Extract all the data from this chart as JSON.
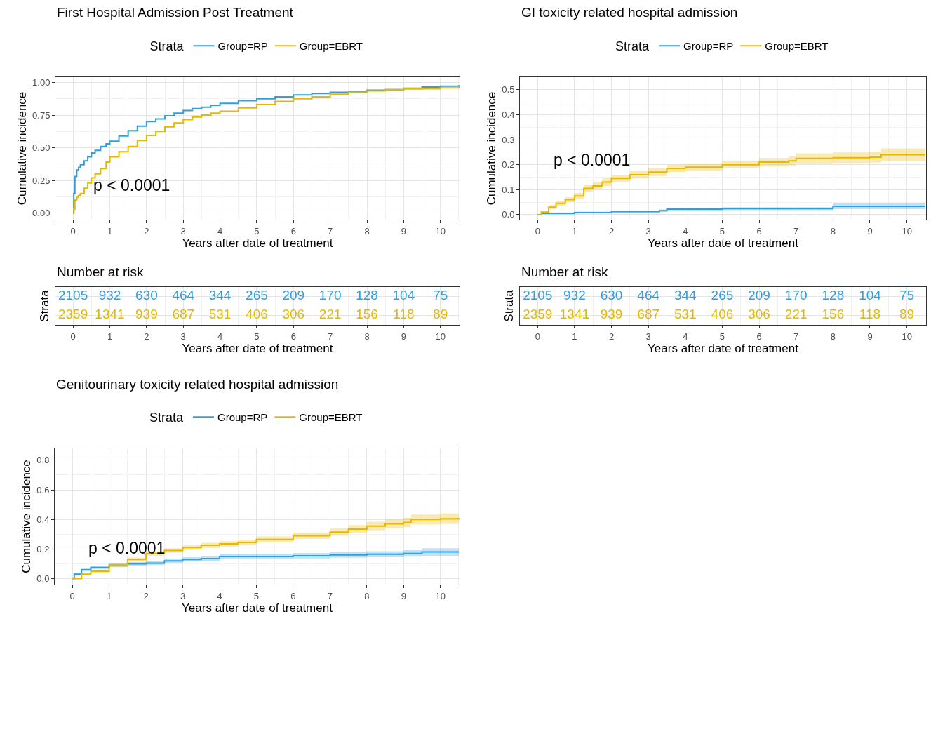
{
  "chart_data": [
    {
      "type": "step",
      "title": "First Hospital Admission Post Treatment",
      "xlabel": "Years after date of treatment",
      "ylabel": "Cumulative incidence",
      "legend_title": "Strata",
      "legend": "top",
      "grid": true,
      "annotations": [
        "p < 0.0001"
      ],
      "xlim": [
        -0.48,
        10.52
      ],
      "xticks": [
        0,
        1,
        2,
        3,
        4,
        5,
        6,
        7,
        8,
        9,
        10
      ],
      "ylim": [
        -0.05,
        1.04
      ],
      "yticks": [
        {
          "value": 0,
          "label": "0.00"
        },
        {
          "value": 0.25,
          "label": "0.25"
        },
        {
          "value": 0.5,
          "label": "0.50"
        },
        {
          "value": 0.75,
          "label": "0.75"
        },
        {
          "value": 1,
          "label": "1.00"
        }
      ],
      "series": [
        {
          "name": "Group=RP",
          "color": "#2e9fdf",
          "x": [
            0,
            0.02,
            0.05,
            0.1,
            0.15,
            0.2,
            0.3,
            0.4,
            0.5,
            0.6,
            0.75,
            0.9,
            1,
            1.25,
            1.5,
            1.75,
            2,
            2.25,
            2.5,
            2.75,
            3,
            3.25,
            3.5,
            3.75,
            4,
            4.5,
            5,
            5.5,
            6,
            6.5,
            7,
            7.5,
            8,
            8.5,
            9,
            9.5,
            10,
            10.5
          ],
          "values": [
            0,
            0.15,
            0.28,
            0.33,
            0.35,
            0.37,
            0.4,
            0.43,
            0.46,
            0.48,
            0.51,
            0.53,
            0.55,
            0.59,
            0.63,
            0.665,
            0.7,
            0.72,
            0.745,
            0.765,
            0.785,
            0.8,
            0.81,
            0.825,
            0.84,
            0.86,
            0.875,
            0.89,
            0.905,
            0.915,
            0.925,
            0.93,
            0.94,
            0.945,
            0.955,
            0.965,
            0.972,
            0.98
          ]
        },
        {
          "name": "Group=EBRT",
          "color": "#e7b800",
          "x": [
            0,
            0.02,
            0.05,
            0.1,
            0.15,
            0.2,
            0.3,
            0.4,
            0.5,
            0.6,
            0.75,
            0.9,
            1,
            1.25,
            1.5,
            1.75,
            2,
            2.25,
            2.5,
            2.75,
            3,
            3.25,
            3.5,
            3.75,
            4,
            4.5,
            5,
            5.5,
            6,
            6.5,
            7,
            7.5,
            8,
            8.5,
            9,
            9.5,
            10,
            10.5
          ],
          "values": [
            0,
            0.03,
            0.1,
            0.12,
            0.135,
            0.15,
            0.19,
            0.23,
            0.27,
            0.3,
            0.34,
            0.39,
            0.43,
            0.47,
            0.51,
            0.555,
            0.595,
            0.625,
            0.66,
            0.69,
            0.715,
            0.735,
            0.75,
            0.765,
            0.78,
            0.805,
            0.83,
            0.855,
            0.875,
            0.89,
            0.91,
            0.925,
            0.935,
            0.945,
            0.95,
            0.952,
            0.958,
            0.965
          ]
        }
      ]
    },
    {
      "type": "step",
      "title": "GI toxicity related hospital admission",
      "xlabel": "Years after date of treatment",
      "ylabel": "Cumulative incidence",
      "legend_title": "Strata",
      "legend": "top",
      "grid": true,
      "annotations": [
        "p < 0.0001"
      ],
      "xlim": [
        -0.48,
        10.52
      ],
      "xticks": [
        0,
        1,
        2,
        3,
        4,
        5,
        6,
        7,
        8,
        9,
        10
      ],
      "ylim": [
        -0.02,
        0.55
      ],
      "yticks": [
        {
          "value": 0,
          "label": "0.0"
        },
        {
          "value": 0.1,
          "label": "0.1"
        },
        {
          "value": 0.2,
          "label": "0.2"
        },
        {
          "value": 0.3,
          "label": "0.3"
        },
        {
          "value": 0.4,
          "label": "0.4"
        },
        {
          "value": 0.5,
          "label": "0.5"
        }
      ],
      "series": [
        {
          "name": "Group=RP",
          "color": "#2e9fdf",
          "x": [
            0,
            0.1,
            1,
            2,
            3.3,
            3.5,
            5,
            7.99,
            8,
            10.5
          ],
          "values": [
            0,
            0.005,
            0.008,
            0.012,
            0.016,
            0.022,
            0.024,
            0.026,
            0.033,
            0.033
          ],
          "lower": [
            0,
            0.001,
            0.004,
            0.008,
            0.011,
            0.016,
            0.018,
            0.019,
            0.022,
            0.022
          ],
          "upper": [
            0,
            0.009,
            0.012,
            0.016,
            0.021,
            0.028,
            0.03,
            0.033,
            0.045,
            0.045
          ]
        },
        {
          "name": "Group=EBRT",
          "color": "#e7b800",
          "x": [
            0,
            0.1,
            0.3,
            0.5,
            0.75,
            1,
            1.25,
            1.5,
            1.75,
            2,
            2.5,
            3,
            3.5,
            4,
            5,
            6,
            6.8,
            7,
            8,
            9,
            9.3,
            10,
            10.5
          ],
          "values": [
            0,
            0.01,
            0.03,
            0.045,
            0.06,
            0.075,
            0.105,
            0.115,
            0.13,
            0.145,
            0.16,
            0.17,
            0.185,
            0.19,
            0.2,
            0.21,
            0.215,
            0.225,
            0.228,
            0.23,
            0.24,
            0.24,
            0.24
          ],
          "lower": [
            0,
            0.005,
            0.022,
            0.035,
            0.05,
            0.063,
            0.092,
            0.1,
            0.115,
            0.13,
            0.145,
            0.155,
            0.17,
            0.175,
            0.185,
            0.193,
            0.197,
            0.205,
            0.207,
            0.208,
            0.215,
            0.215,
            0.215
          ],
          "upper": [
            0,
            0.015,
            0.038,
            0.055,
            0.07,
            0.087,
            0.118,
            0.13,
            0.145,
            0.16,
            0.175,
            0.185,
            0.2,
            0.205,
            0.215,
            0.227,
            0.233,
            0.245,
            0.249,
            0.252,
            0.265,
            0.265,
            0.265
          ]
        }
      ]
    },
    {
      "type": "heatmap",
      "title": "Number at risk",
      "xlabel": "Years after date of treatment",
      "ylabel": "Strata",
      "tick_labels": "x",
      "grid": true,
      "data_labels": true,
      "categories": [
        "0",
        "1",
        "2",
        "3",
        "4",
        "5",
        "6",
        "7",
        "8",
        "9",
        "10"
      ],
      "y_categories": [
        null,
        null
      ],
      "colors": [
        "#2e9fdf",
        "#e7b800"
      ],
      "cells": [
        [
          2105,
          932,
          630,
          464,
          344,
          265,
          209,
          170,
          128,
          104,
          75
        ],
        [
          2359,
          1341,
          939,
          687,
          531,
          406,
          306,
          221,
          156,
          118,
          89
        ]
      ]
    },
    {
      "type": "heatmap",
      "title": "Number at risk",
      "xlabel": "Years after date of treatment",
      "ylabel": "Strata",
      "tick_labels": "x",
      "grid": true,
      "data_labels": true,
      "categories": [
        "0",
        "1",
        "2",
        "3",
        "4",
        "5",
        "6",
        "7",
        "8",
        "9",
        "10"
      ],
      "y_categories": [
        null,
        null
      ],
      "colors": [
        "#2e9fdf",
        "#e7b800"
      ],
      "cells": [
        [
          2105,
          932,
          630,
          464,
          344,
          265,
          209,
          170,
          128,
          104,
          75
        ],
        [
          2359,
          1341,
          939,
          687,
          531,
          406,
          306,
          221,
          156,
          118,
          89
        ]
      ]
    },
    {
      "type": "step",
      "title": "Genitourinary toxicity related hospital admission",
      "xlabel": "Years after date of treatment",
      "ylabel": "Cumulative incidence",
      "legend_title": "Strata",
      "legend": "top",
      "grid": true,
      "annotations": [
        "p < 0.0001"
      ],
      "xlim": [
        -0.48,
        10.52
      ],
      "xticks": [
        0,
        1,
        2,
        3,
        4,
        5,
        6,
        7,
        8,
        9,
        10
      ],
      "ylim": [
        -0.04,
        0.88
      ],
      "yticks": [
        {
          "value": 0,
          "label": "0.0"
        },
        {
          "value": 0.2,
          "label": "0.2"
        },
        {
          "value": 0.4,
          "label": "0.4"
        },
        {
          "value": 0.6,
          "label": "0.6"
        },
        {
          "value": 0.8,
          "label": "0.8"
        }
      ],
      "series": [
        {
          "name": "Group=RP",
          "color": "#2e9fdf",
          "x": [
            0,
            0.05,
            0.25,
            0.5,
            1,
            1.5,
            2,
            2.5,
            3,
            3.5,
            4,
            5,
            6,
            7,
            8,
            9,
            9.5,
            10.5
          ],
          "values": [
            0,
            0.03,
            0.06,
            0.075,
            0.09,
            0.1,
            0.105,
            0.12,
            0.13,
            0.135,
            0.15,
            0.15,
            0.155,
            0.16,
            0.165,
            0.17,
            0.18,
            0.18
          ],
          "lower": [
            0,
            0.02,
            0.05,
            0.063,
            0.077,
            0.087,
            0.092,
            0.105,
            0.115,
            0.12,
            0.133,
            0.133,
            0.137,
            0.141,
            0.145,
            0.148,
            0.155,
            0.155
          ],
          "upper": [
            0,
            0.04,
            0.07,
            0.087,
            0.103,
            0.113,
            0.118,
            0.135,
            0.145,
            0.15,
            0.167,
            0.167,
            0.173,
            0.179,
            0.185,
            0.192,
            0.205,
            0.205
          ]
        },
        {
          "name": "Group=EBRT",
          "color": "#e7b800",
          "x": [
            0,
            0.25,
            0.5,
            1,
            1.5,
            2,
            2.5,
            3,
            3.5,
            4,
            4.5,
            5,
            6,
            7,
            7.5,
            8,
            8.5,
            9,
            9.2,
            10,
            10.5
          ],
          "values": [
            0,
            0.03,
            0.05,
            0.09,
            0.13,
            0.17,
            0.19,
            0.21,
            0.225,
            0.235,
            0.245,
            0.265,
            0.29,
            0.315,
            0.335,
            0.355,
            0.37,
            0.38,
            0.4,
            0.405,
            0.41
          ],
          "lower": [
            0,
            0.022,
            0.04,
            0.078,
            0.117,
            0.155,
            0.175,
            0.195,
            0.208,
            0.217,
            0.226,
            0.245,
            0.268,
            0.29,
            0.308,
            0.326,
            0.34,
            0.348,
            0.367,
            0.37,
            0.375
          ],
          "upper": [
            0,
            0.038,
            0.06,
            0.102,
            0.143,
            0.185,
            0.205,
            0.225,
            0.242,
            0.253,
            0.264,
            0.285,
            0.312,
            0.34,
            0.362,
            0.384,
            0.4,
            0.412,
            0.433,
            0.44,
            0.445
          ]
        }
      ]
    }
  ]
}
